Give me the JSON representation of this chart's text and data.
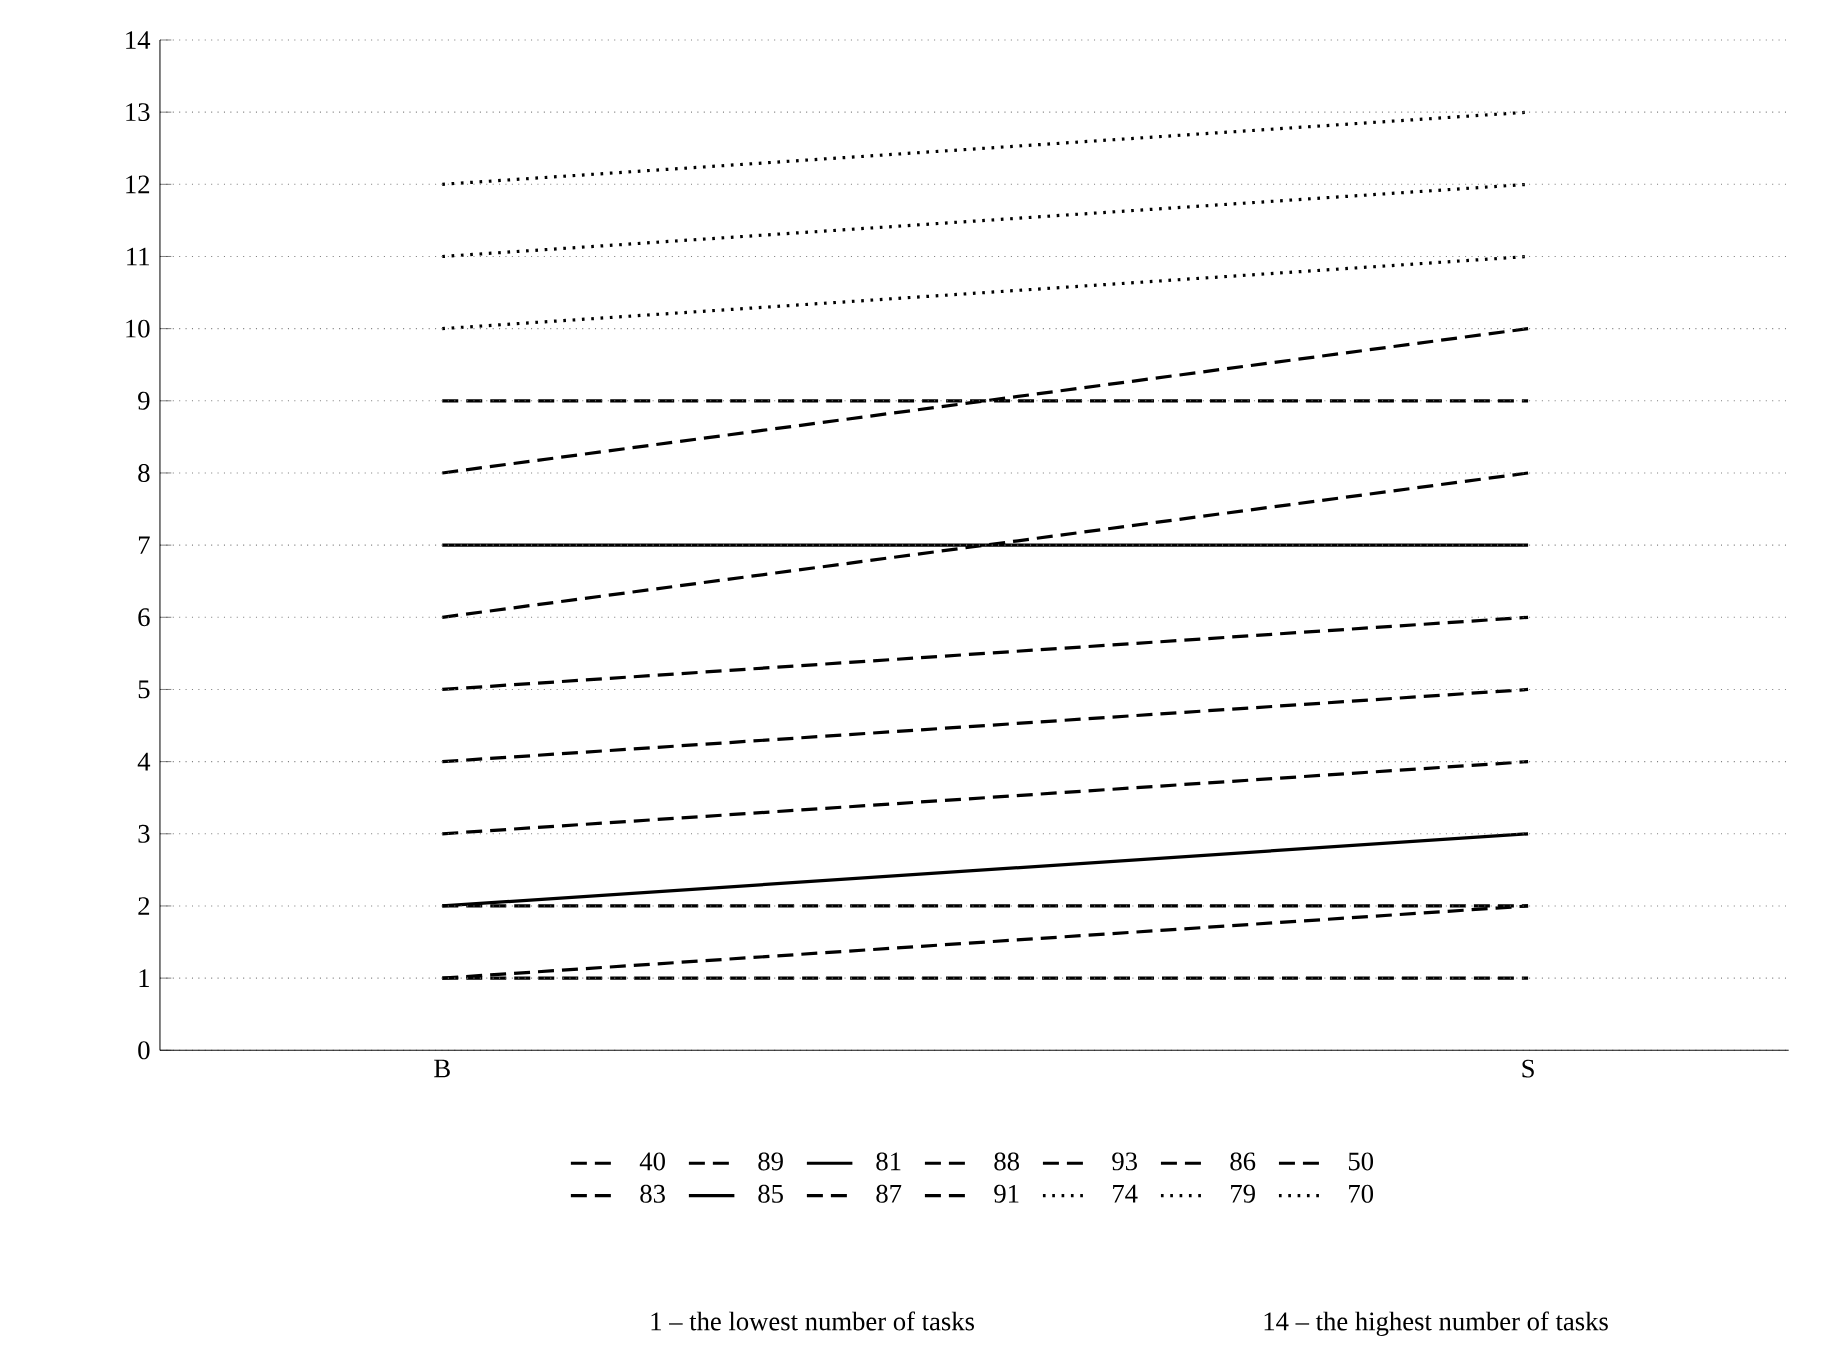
{
  "chart_data": {
    "type": "line",
    "categories": [
      "B",
      "S"
    ],
    "ylim": [
      0,
      14
    ],
    "yticks": [
      0,
      1,
      2,
      3,
      4,
      5,
      6,
      7,
      8,
      9,
      10,
      11,
      12,
      13,
      14
    ],
    "grid": "y",
    "legend": "bottom",
    "marker": "none",
    "series": [
      {
        "name": "40",
        "color": "#000000",
        "line_style": "dashed",
        "values": [
          1,
          2
        ]
      },
      {
        "name": "89",
        "color": "#000000",
        "line_style": "dashed",
        "values": [
          1,
          1
        ]
      },
      {
        "name": "81",
        "color": "#000000",
        "line_style": "solid",
        "values": [
          2,
          3
        ]
      },
      {
        "name": "88",
        "color": "#000000",
        "line_style": "dashed",
        "values": [
          2,
          2
        ]
      },
      {
        "name": "93",
        "color": "#000000",
        "line_style": "dashed",
        "values": [
          3,
          4
        ]
      },
      {
        "name": "86",
        "color": "#000000",
        "line_style": "dashed",
        "values": [
          4,
          5
        ]
      },
      {
        "name": "50",
        "color": "#000000",
        "line_style": "dashed",
        "values": [
          5,
          6
        ]
      },
      {
        "name": "83",
        "color": "#000000",
        "line_style": "dashed",
        "values": [
          6,
          8
        ]
      },
      {
        "name": "85",
        "color": "#000000",
        "line_style": "solid",
        "values": [
          7,
          7
        ]
      },
      {
        "name": "87",
        "color": "#000000",
        "line_style": "dashed",
        "values": [
          8,
          10
        ]
      },
      {
        "name": "91",
        "color": "#000000",
        "line_style": "dashed",
        "values": [
          9,
          9
        ]
      },
      {
        "name": "74",
        "color": "#000000",
        "line_style": "dotted",
        "values": [
          10,
          11
        ]
      },
      {
        "name": "79",
        "color": "#000000",
        "line_style": "dotted",
        "values": [
          11,
          12
        ]
      },
      {
        "name": "70",
        "color": "#000000",
        "line_style": "dotted",
        "values": [
          12,
          13
        ]
      }
    ],
    "annotations": [
      "1 – the lowest number of tasks",
      "14 – the highest number of tasks"
    ]
  }
}
